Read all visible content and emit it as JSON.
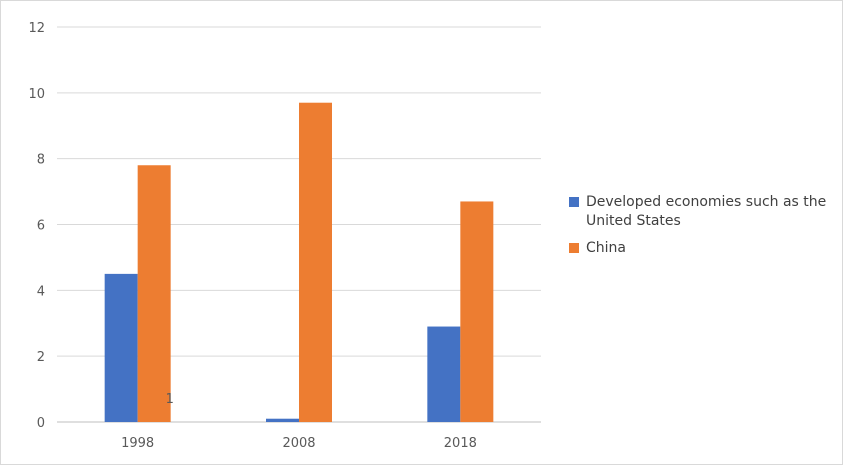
{
  "chart_data": {
    "type": "bar",
    "categories": [
      "1998",
      "2008",
      "2018"
    ],
    "series": [
      {
        "name": "Developed economies such as the United States",
        "values": [
          4.5,
          0.1,
          2.9
        ],
        "color": "#4472C4"
      },
      {
        "name": "China",
        "values": [
          7.8,
          9.7,
          6.7
        ],
        "color": "#ED7D31"
      }
    ],
    "ylim": [
      0,
      12
    ],
    "yticks": [
      "0",
      "2",
      "4",
      "6",
      "8",
      "10",
      "12"
    ],
    "grid": true,
    "legend_position": "right",
    "annotations": [
      {
        "text": "1"
      }
    ]
  }
}
